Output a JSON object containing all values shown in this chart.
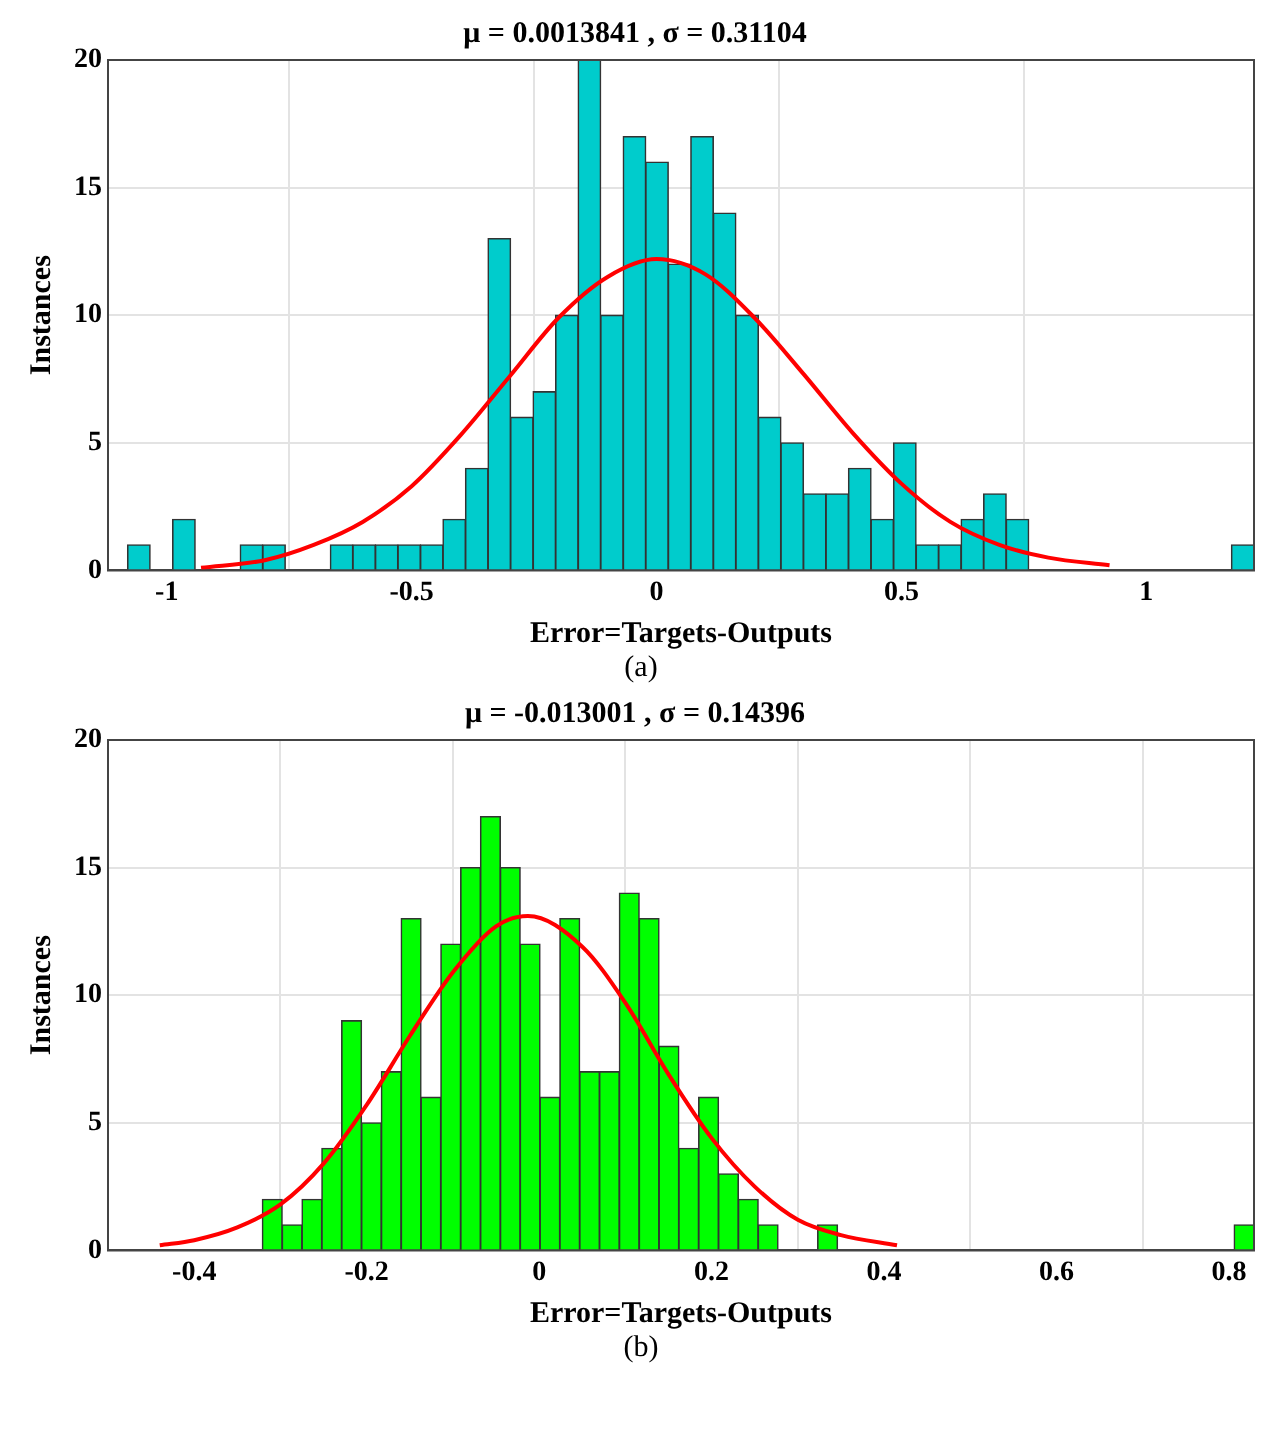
{
  "chart_data": [
    {
      "type": "histogram",
      "title": "μ = 0.0013841 , σ = 0.31104",
      "xlabel": "Error=Targets-Outputs",
      "ylabel": "Instances",
      "xlim": [
        -1.12,
        1.22
      ],
      "xticks": [
        -1,
        -0.5,
        0,
        0.5,
        1
      ],
      "ylim": [
        0,
        20
      ],
      "yticks": [
        0,
        5,
        10,
        15,
        20
      ],
      "grid": true,
      "annotations": [
        "(a)"
      ],
      "series": [
        {
          "type": "histogram",
          "color": "#00cccc",
          "bins": [
            -1.08,
            -1.034,
            -0.988,
            -0.942,
            -0.896,
            -0.85,
            -0.804,
            -0.758,
            -0.712,
            -0.666,
            -0.62,
            -0.574,
            -0.528,
            -0.482,
            -0.436,
            -0.39,
            -0.344,
            -0.298,
            -0.252,
            -0.206,
            -0.16,
            -0.114,
            -0.068,
            -0.022,
            0.024,
            0.07,
            0.116,
            0.162,
            0.208,
            0.254,
            0.3,
            0.346,
            0.392,
            0.438,
            0.484,
            0.53,
            0.576,
            0.622,
            0.668,
            0.714,
            0.76,
            0.806,
            0.852,
            0.898,
            0.944,
            0.99,
            1.036,
            1.082,
            1.128,
            1.174,
            1.22
          ],
          "values": [
            1,
            0,
            2,
            0,
            0,
            1,
            1,
            0,
            0,
            1,
            1,
            1,
            1,
            1,
            2,
            4,
            13,
            6,
            7,
            10,
            20,
            10,
            17,
            16,
            12,
            17,
            14,
            10,
            6,
            5,
            3,
            3,
            4,
            2,
            5,
            1,
            1,
            2,
            3,
            2,
            0,
            0,
            0,
            0,
            0,
            0,
            0,
            0,
            0,
            1
          ]
        },
        {
          "type": "line",
          "color": "#ff0000",
          "marker": "none",
          "x": [
            -0.93,
            -0.8,
            -0.7,
            -0.6,
            -0.5,
            -0.4,
            -0.3,
            -0.2,
            -0.1,
            0,
            0.1,
            0.2,
            0.3,
            0.4,
            0.5,
            0.6,
            0.7,
            0.8,
            0.925
          ],
          "values": [
            0.1,
            0.4,
            1.0,
            1.9,
            3.3,
            5.3,
            7.6,
            9.9,
            11.5,
            12.2,
            11.6,
            9.9,
            7.7,
            5.4,
            3.4,
            1.9,
            1.0,
            0.5,
            0.2
          ]
        }
      ]
    },
    {
      "type": "histogram",
      "title": "μ = -0.013001 , σ = 0.14396",
      "xlabel": "Error=Targets-Outputs",
      "ylabel": "Instances",
      "xlim": [
        -0.5,
        0.829
      ],
      "xticks": [
        -0.4,
        -0.2,
        0,
        0.2,
        0.4,
        0.6,
        0.8
      ],
      "ylim": [
        0,
        20
      ],
      "yticks": [
        0,
        5,
        10,
        15,
        20
      ],
      "grid": true,
      "annotations": [
        "(b)"
      ],
      "series": [
        {
          "type": "histogram",
          "color": "#00ff00",
          "bins": [
            -0.321,
            -0.298,
            -0.275,
            -0.252,
            -0.229,
            -0.206,
            -0.183,
            -0.16,
            -0.137,
            -0.114,
            -0.091,
            -0.068,
            -0.045,
            -0.022,
            0.001,
            0.024,
            0.047,
            0.07,
            0.093,
            0.116,
            0.139,
            0.162,
            0.185,
            0.208,
            0.231,
            0.254,
            0.277,
            0.3,
            0.323,
            0.346,
            0.369,
            0.392,
            0.415,
            0.438,
            0.461,
            0.484,
            0.507,
            0.53,
            0.553,
            0.576,
            0.599,
            0.622,
            0.645,
            0.668,
            0.691,
            0.714,
            0.737,
            0.76,
            0.783,
            0.806,
            0.829
          ],
          "values": [
            2,
            1,
            2,
            4,
            9,
            5,
            7,
            13,
            6,
            12,
            15,
            17,
            15,
            12,
            6,
            13,
            7,
            7,
            14,
            13,
            8,
            4,
            6,
            3,
            2,
            1,
            0,
            0,
            1,
            0,
            0,
            0,
            0,
            0,
            0,
            0,
            0,
            0,
            0,
            0,
            0,
            0,
            0,
            0,
            0,
            0,
            0,
            0,
            0,
            1
          ]
        },
        {
          "type": "line",
          "color": "#ff0000",
          "marker": "none",
          "x": [
            -0.44,
            -0.4,
            -0.35,
            -0.3,
            -0.25,
            -0.2,
            -0.15,
            -0.1,
            -0.05,
            -0.013,
            0.05,
            0.1,
            0.15,
            0.2,
            0.25,
            0.3,
            0.35,
            0.415
          ],
          "values": [
            0.2,
            0.4,
            0.9,
            1.8,
            3.4,
            5.7,
            8.4,
            10.9,
            12.7,
            13.1,
            11.9,
            9.7,
            6.9,
            4.4,
            2.5,
            1.2,
            0.6,
            0.2
          ]
        }
      ]
    }
  ]
}
